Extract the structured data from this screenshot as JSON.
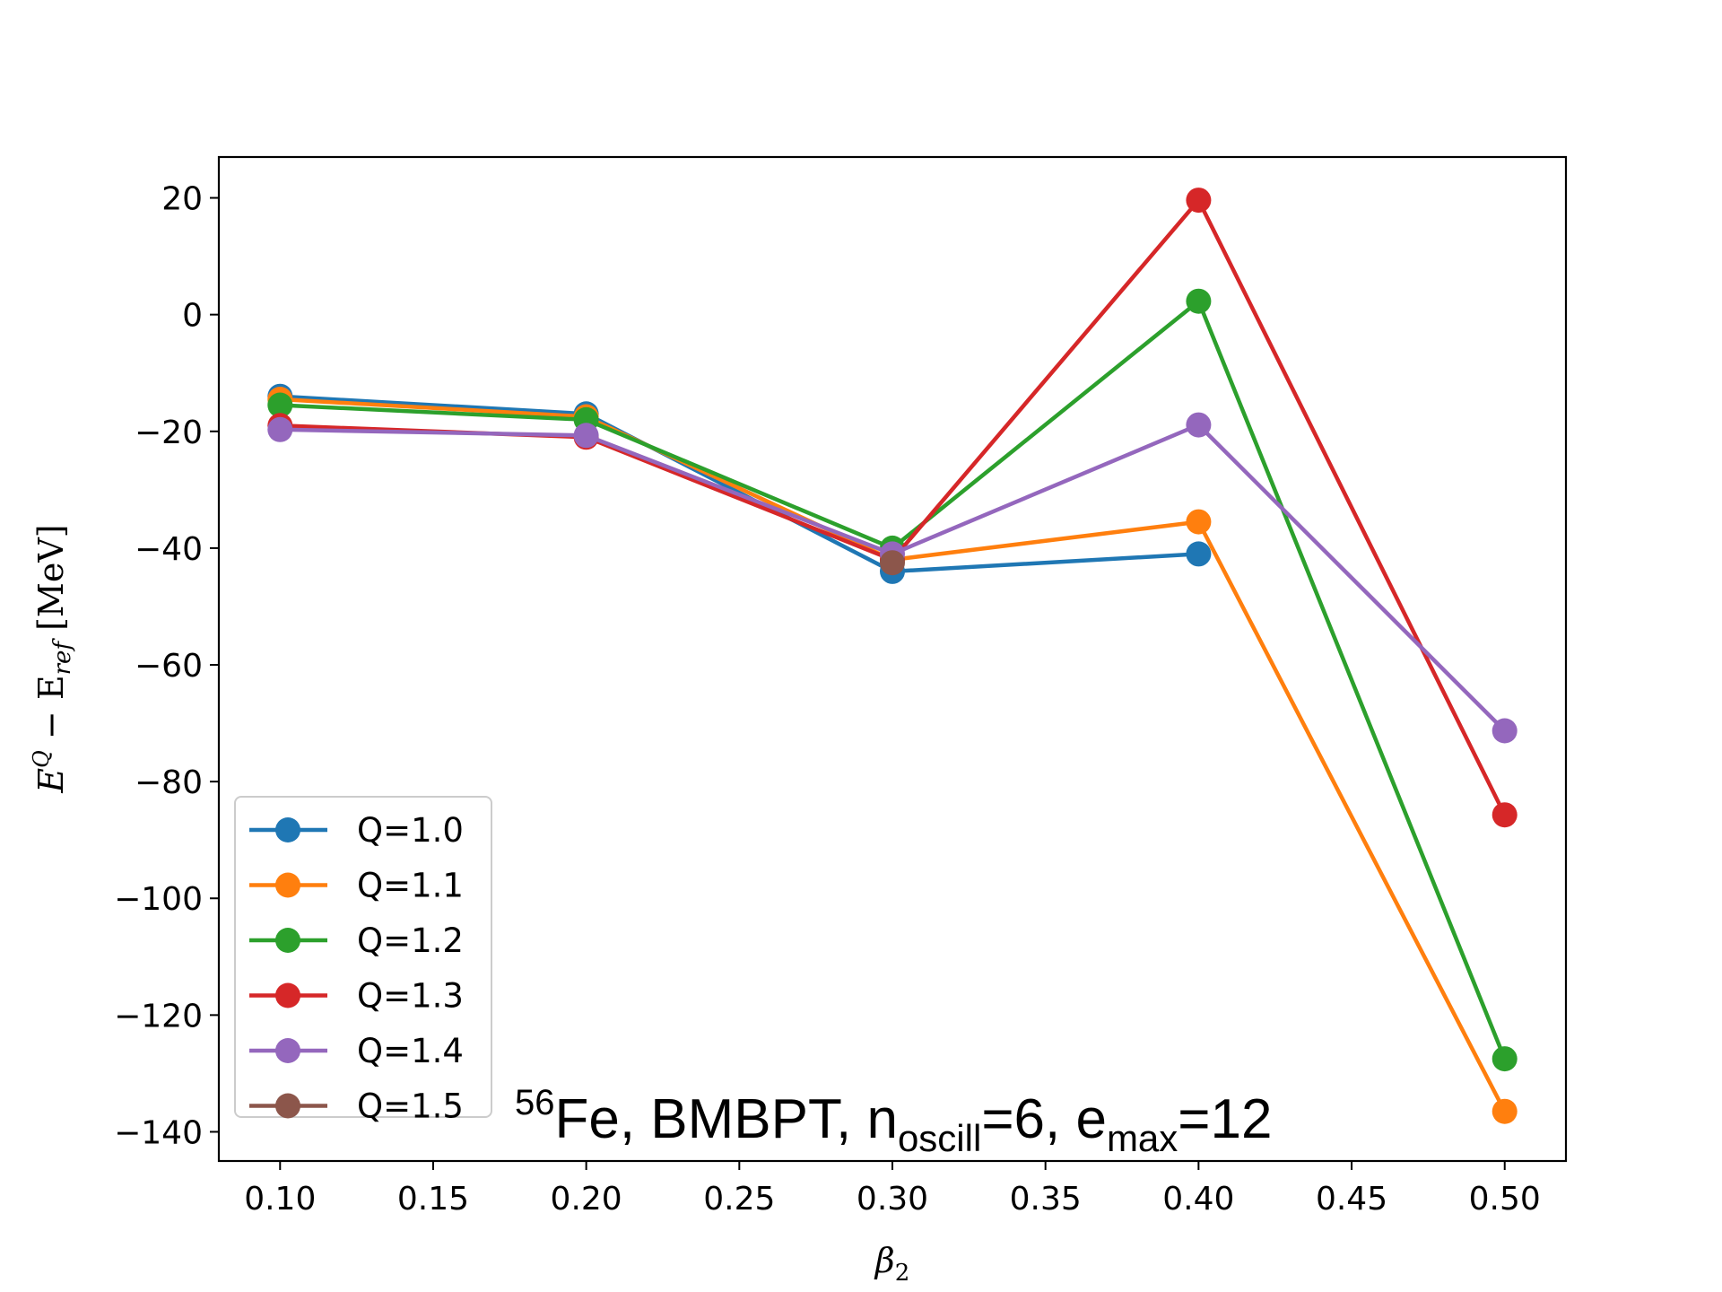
{
  "chart_data": {
    "type": "line",
    "xlabel": "β",
    "xlabel_sub": "2",
    "ylabel": "E",
    "ylabel_sup": "Q",
    "ylabel_minus": " − E",
    "ylabel_sub": "ref",
    "ylabel_unit": " [MeV]",
    "xlim": [
      0.08,
      0.52
    ],
    "ylim": [
      -145,
      27
    ],
    "x_ticks": [
      "0.10",
      "0.15",
      "0.20",
      "0.25",
      "0.30",
      "0.35",
      "0.40",
      "0.45",
      "0.50"
    ],
    "x_tick_values": [
      0.1,
      0.15,
      0.2,
      0.25,
      0.3,
      0.35,
      0.4,
      0.45,
      0.5
    ],
    "y_ticks": [
      "20",
      "0",
      "−20",
      "−40",
      "−60",
      "−80",
      "−100",
      "−120",
      "−140"
    ],
    "y_tick_values": [
      20,
      0,
      -20,
      -40,
      -60,
      -80,
      -100,
      -120,
      -140
    ],
    "grid": false,
    "legend_position": "lower-left",
    "annotation": {
      "sup": "56",
      "part1": "Fe, BMBPT, n",
      "sub1": "oscill",
      "part2": "=6, e",
      "sub2": "max",
      "part3": "=12"
    },
    "series": [
      {
        "name": "Q=1.0",
        "color": "#1f77b4",
        "x": [
          0.1,
          0.2,
          0.3,
          0.4
        ],
        "y": [
          -14,
          -17,
          -44,
          -41
        ]
      },
      {
        "name": "Q=1.1",
        "color": "#ff7f0e",
        "x": [
          0.1,
          0.2,
          0.3,
          0.4,
          0.5
        ],
        "y": [
          -14.5,
          -17.5,
          -42,
          -35.5,
          -136.5
        ]
      },
      {
        "name": "Q=1.2",
        "color": "#2ca02c",
        "x": [
          0.1,
          0.2,
          0.3,
          0.4,
          0.5
        ],
        "y": [
          -15.5,
          -18,
          -40,
          2.3,
          -127.5
        ]
      },
      {
        "name": "Q=1.3",
        "color": "#d62728",
        "x": [
          0.1,
          0.2,
          0.3,
          0.4,
          0.5
        ],
        "y": [
          -19,
          -21,
          -42,
          19.6,
          -85.7
        ]
      },
      {
        "name": "Q=1.4",
        "color": "#9467bd",
        "x": [
          0.1,
          0.2,
          0.3,
          0.4,
          0.5
        ],
        "y": [
          -19.7,
          -20.7,
          -41,
          -18.9,
          -71.3
        ]
      },
      {
        "name": "Q=1.5",
        "color": "#8c564b",
        "x": [
          0.3
        ],
        "y": [
          -42.5
        ]
      }
    ]
  }
}
